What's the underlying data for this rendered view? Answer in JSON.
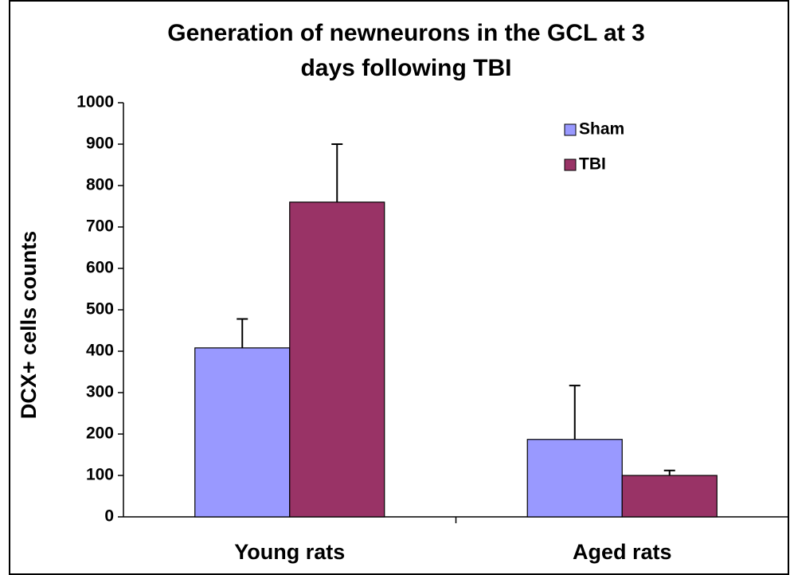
{
  "chart_data": {
    "type": "bar",
    "title": [
      "Generation of newneurons in the GCL at 3",
      "days following TBI"
    ],
    "ylabel": "DCX+ cells counts",
    "categories": [
      "Young rats",
      "Aged rats"
    ],
    "series": [
      {
        "name": "Sham",
        "color": "#9999ff",
        "values": [
          408,
          187
        ],
        "errors": [
          70,
          130
        ]
      },
      {
        "name": "TBI",
        "color": "#993366",
        "values": [
          760,
          100
        ],
        "errors": [
          140,
          12
        ]
      }
    ],
    "ylim": [
      0,
      1000
    ],
    "yticks": [
      0,
      100,
      200,
      300,
      400,
      500,
      600,
      700,
      800,
      900,
      1000
    ],
    "legend": "upper right"
  }
}
